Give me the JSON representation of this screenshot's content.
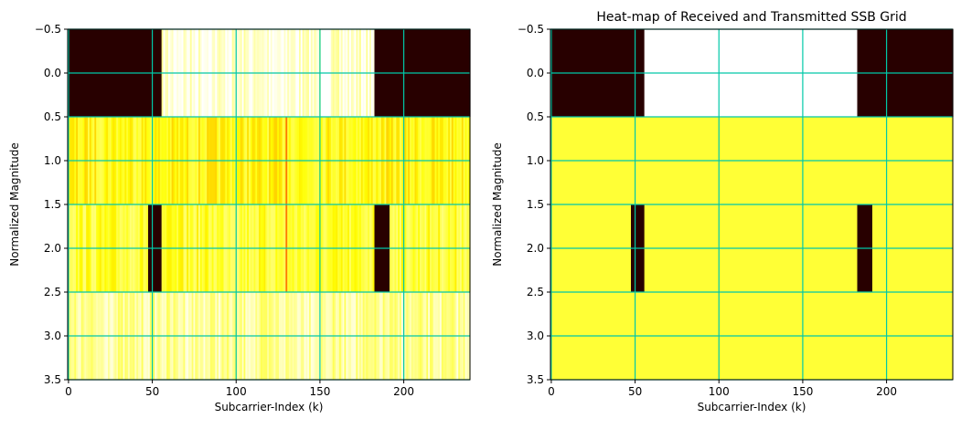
{
  "figure": {
    "background": "#ffffff",
    "grid_color": "#00c8a8",
    "colormap": "hot"
  },
  "chart_data": [
    {
      "type": "heatmap",
      "title": "",
      "xlabel": "Subcarrier-Index (k)",
      "ylabel": "Normalized Magnitude",
      "xlim": [
        0,
        239
      ],
      "ylim": [
        3.5,
        -0.5
      ],
      "x_ticks": [
        0,
        50,
        100,
        150,
        200
      ],
      "x_tick_labels": [
        "0",
        "50",
        "100",
        "150",
        "200"
      ],
      "y_ticks": [
        -0.5,
        0.0,
        0.5,
        1.0,
        1.5,
        2.0,
        2.5,
        3.0,
        3.5
      ],
      "y_tick_labels": [
        "−0.5",
        "0.0",
        "0.5",
        "1.0",
        "1.5",
        "2.0",
        "2.5",
        "3.0",
        "3.5"
      ],
      "grid": true,
      "rows": [
        {
          "row": 0,
          "segments": [
            {
              "from": 0,
              "to": 56,
              "value": 0.02
            },
            {
              "from": 56,
              "to": 183,
              "value": 0.96,
              "noise": true
            },
            {
              "from": 183,
              "to": 240,
              "value": 0.02
            }
          ]
        },
        {
          "row": 1,
          "segments": [
            {
              "from": 0,
              "to": 240,
              "value": 0.76,
              "noise": true
            }
          ],
          "highlights": [
            {
              "k": 130,
              "value": 0.55
            }
          ]
        },
        {
          "row": 2,
          "segments": [
            {
              "from": 0,
              "to": 48,
              "value": 0.8,
              "noise": true
            },
            {
              "from": 48,
              "to": 56,
              "value": 0.02
            },
            {
              "from": 56,
              "to": 183,
              "value": 0.8,
              "noise": true
            },
            {
              "from": 183,
              "to": 192,
              "value": 0.02
            },
            {
              "from": 192,
              "to": 240,
              "value": 0.8,
              "noise": true
            }
          ],
          "highlights": [
            {
              "k": 130,
              "value": 0.55
            }
          ]
        },
        {
          "row": 3,
          "segments": [
            {
              "from": 0,
              "to": 240,
              "value": 0.9,
              "noise": true
            }
          ]
        }
      ]
    },
    {
      "type": "heatmap",
      "title": "Heat-map of Received and Transmitted SSB Grid",
      "xlabel": "Subcarrier-Index (k)",
      "ylabel": "Normalized Magnitude",
      "xlim": [
        0,
        239
      ],
      "ylim": [
        3.5,
        -0.5
      ],
      "x_ticks": [
        0,
        50,
        100,
        150,
        200
      ],
      "x_tick_labels": [
        "0",
        "50",
        "100",
        "150",
        "200"
      ],
      "y_ticks": [
        -0.5,
        0.0,
        0.5,
        1.0,
        1.5,
        2.0,
        2.5,
        3.0,
        3.5
      ],
      "y_tick_labels": [
        "−0.5",
        "0.0",
        "0.5",
        "1.0",
        "1.5",
        "2.0",
        "2.5",
        "3.0",
        "3.5"
      ],
      "grid": true,
      "rows": [
        {
          "row": 0,
          "segments": [
            {
              "from": 0,
              "to": 56,
              "value": 0.02
            },
            {
              "from": 56,
              "to": 183,
              "value": 1.0
            },
            {
              "from": 183,
              "to": 240,
              "value": 0.02
            }
          ]
        },
        {
          "row": 1,
          "segments": [
            {
              "from": 0,
              "to": 240,
              "value": 0.8
            }
          ]
        },
        {
          "row": 2,
          "segments": [
            {
              "from": 0,
              "to": 48,
              "value": 0.8
            },
            {
              "from": 48,
              "to": 56,
              "value": 0.02
            },
            {
              "from": 56,
              "to": 183,
              "value": 0.8
            },
            {
              "from": 183,
              "to": 192,
              "value": 0.02
            },
            {
              "from": 192,
              "to": 240,
              "value": 0.8
            }
          ]
        },
        {
          "row": 3,
          "segments": [
            {
              "from": 0,
              "to": 240,
              "value": 0.8
            }
          ]
        }
      ]
    }
  ]
}
